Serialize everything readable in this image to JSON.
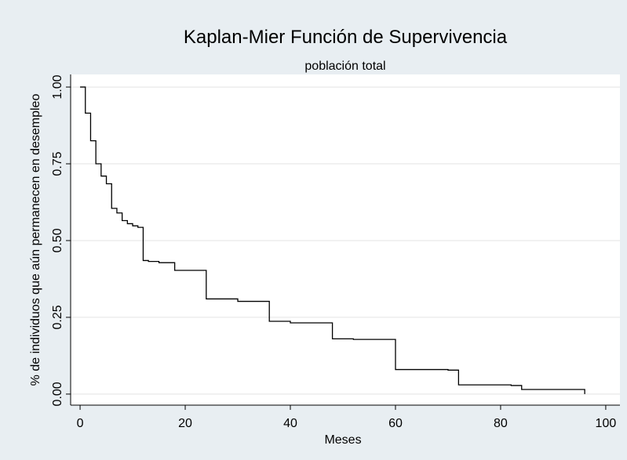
{
  "chart_data": {
    "type": "line",
    "drawstyle": "steps-post",
    "title": "Kaplan-Mier Función de Supervivencia",
    "subtitle": "población total",
    "x_label": "Meses",
    "y_label": "% de individuos que aún permanecen en desempleo",
    "x": [
      0,
      1,
      2,
      3,
      4,
      5,
      6,
      7,
      8,
      9,
      10,
      11,
      12,
      13,
      15,
      18,
      24,
      30,
      36,
      40,
      48,
      52,
      60,
      70,
      72,
      82,
      84,
      96
    ],
    "series": [
      {
        "color": "#000000",
        "values": [
          1.0,
          0.915,
          0.825,
          0.75,
          0.71,
          0.685,
          0.605,
          0.59,
          0.565,
          0.555,
          0.548,
          0.543,
          0.435,
          0.432,
          0.428,
          0.403,
          0.31,
          0.302,
          0.237,
          0.232,
          0.18,
          0.178,
          0.08,
          0.078,
          0.03,
          0.028,
          0.015,
          0.0
        ]
      }
    ],
    "xlim": [
      -1.8,
      102.7
    ],
    "xticks": [
      0,
      20,
      40,
      60,
      80,
      100
    ],
    "ylim": [
      -0.036,
      1.041
    ],
    "yticks": [
      {
        "value": 0,
        "label": "0.00"
      },
      {
        "value": 0.25,
        "label": "0.25"
      },
      {
        "value": 0.5,
        "label": "0.50"
      },
      {
        "value": 0.75,
        "label": "0.75"
      },
      {
        "value": 1,
        "label": "1.00"
      }
    ],
    "grid": true
  }
}
